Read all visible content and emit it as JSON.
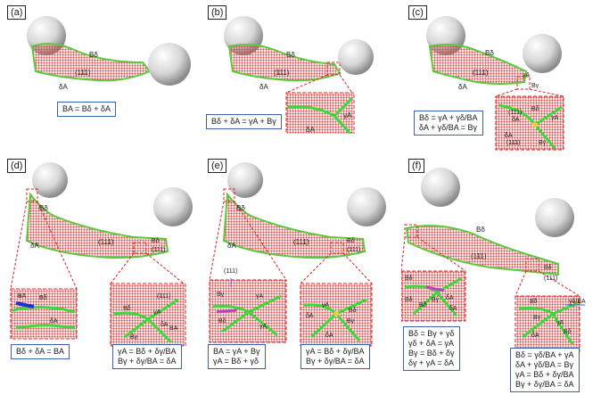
{
  "panels": [
    {
      "id": "a",
      "label": "(a)",
      "film_labels": [
        "Bδ",
        "(111)",
        "δA"
      ],
      "equations": [
        "BA = Bδ + δA"
      ]
    },
    {
      "id": "b",
      "label": "(b)",
      "film_labels": [
        "Bδ",
        "(111)",
        "δA"
      ],
      "inset_labels": [
        "γA",
        "δA",
        "Bγ"
      ],
      "equations": [
        "Bδ + δA = γA + Bγ"
      ]
    },
    {
      "id": "c",
      "label": "(c)",
      "film_labels": [
        "Bδ",
        "(111)",
        "δA",
        "γA",
        "Bγ"
      ],
      "inset_labels": [
        "(111)",
        "δA",
        "Bδ",
        "γA",
        "δA",
        "(111)",
        "Bγ"
      ],
      "equations": [
        "Bδ = γA + γδ/BA",
        "δA + γδ/BA = Bγ"
      ]
    },
    {
      "id": "d",
      "label": "(d)",
      "film_labels": [
        "Bδ",
        "(111)",
        "δA",
        "Bδ",
        "(111)"
      ],
      "inset_left_labels": [
        "BA",
        "Bδ",
        "δA"
      ],
      "inset_right_labels": [
        "(111)",
        "Bδ",
        "γA",
        "δA",
        "Bγ",
        "BA"
      ],
      "equations_left": [
        "Bδ + δA = BA"
      ],
      "equations_right": [
        "γA = Bδ + δγ/BA",
        "Bγ + δγ/BA = δA"
      ]
    },
    {
      "id": "e",
      "label": "(e)",
      "film_labels": [
        "Bδ",
        "(111)",
        "δA",
        "Bδ",
        "(111)"
      ],
      "inset_left_labels": [
        "(111)",
        "Bγ",
        "γA",
        "Bδ",
        "γA"
      ],
      "inset_right_labels": [
        "δA",
        "γA",
        "Bδ",
        "Bγ",
        "δA"
      ],
      "equations_left": [
        "BA = γA + Bγ",
        "γA = Bδ + γδ"
      ],
      "equations_right": [
        "γA = Bδ + δγ/BA",
        "Bγ + δγ/BA = δA"
      ]
    },
    {
      "id": "f",
      "label": "(f)",
      "film_labels": [
        "Bδ",
        "(111)",
        "Bδ",
        "(111)"
      ],
      "inset_left_labels": [
        "Bδ",
        "Bδ",
        "Bδ",
        "Bγ",
        "δA",
        "δA"
      ],
      "inset_right_labels": [
        "Bδ",
        "γδ/BA",
        "Bγ",
        "γA",
        "Bδ",
        "δA"
      ],
      "equations_left": [
        "Bδ = Bγ + γδ",
        "γδ + δA = γA",
        "Bγ = Bδ + δγ",
        "δγ + γA = δA"
      ],
      "equations_right": [
        "Bδ = γδ/BA + γA",
        "δA + γδ/BA = Bγ",
        "γA = Bδ + δγ/BA",
        "Bγ + δγ/BA = δA"
      ]
    }
  ]
}
